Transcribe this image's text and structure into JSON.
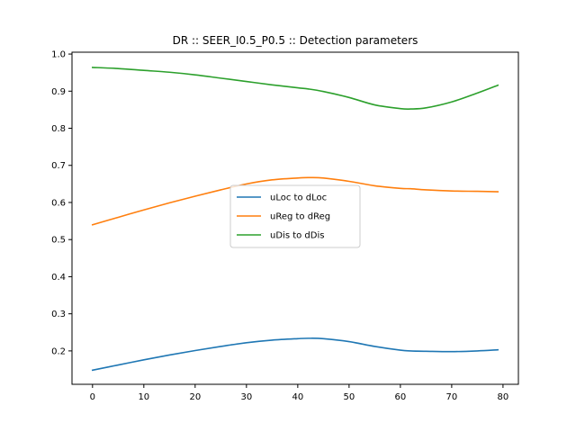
{
  "chart_data": {
    "type": "line",
    "title": "DR :: SEER_I0.5_P0.5 ::  Detection parameters",
    "xlabel": "",
    "ylabel": "",
    "xlim": [
      -4,
      83
    ],
    "ylim": [
      0.11,
      1.005
    ],
    "xticks": [
      0,
      10,
      20,
      30,
      40,
      50,
      60,
      70,
      80
    ],
    "yticks": [
      0.2,
      0.3,
      0.4,
      0.5,
      0.6,
      0.7,
      0.8,
      0.9,
      1.0
    ],
    "grid": false,
    "legend_position": "center",
    "x": [
      0,
      5,
      10,
      15,
      20,
      25,
      30,
      35,
      40,
      42,
      45,
      50,
      55,
      60,
      62,
      65,
      70,
      75,
      79
    ],
    "series": [
      {
        "name": "uLoc to dLoc",
        "color": "#1f77b4",
        "values": [
          0.148,
          0.162,
          0.176,
          0.189,
          0.201,
          0.212,
          0.222,
          0.229,
          0.233,
          0.234,
          0.233,
          0.225,
          0.212,
          0.202,
          0.2,
          0.199,
          0.198,
          0.2,
          0.203
        ]
      },
      {
        "name": "uReg to dReg",
        "color": "#ff7f0e",
        "values": [
          0.54,
          0.56,
          0.58,
          0.599,
          0.617,
          0.634,
          0.65,
          0.661,
          0.666,
          0.667,
          0.666,
          0.657,
          0.645,
          0.638,
          0.637,
          0.634,
          0.631,
          0.63,
          0.629
        ]
      },
      {
        "name": "uDis to dDis",
        "color": "#2ca02c",
        "values": [
          0.964,
          0.961,
          0.956,
          0.951,
          0.944,
          0.935,
          0.926,
          0.917,
          0.909,
          0.906,
          0.899,
          0.883,
          0.863,
          0.853,
          0.852,
          0.855,
          0.871,
          0.895,
          0.916
        ]
      }
    ]
  }
}
